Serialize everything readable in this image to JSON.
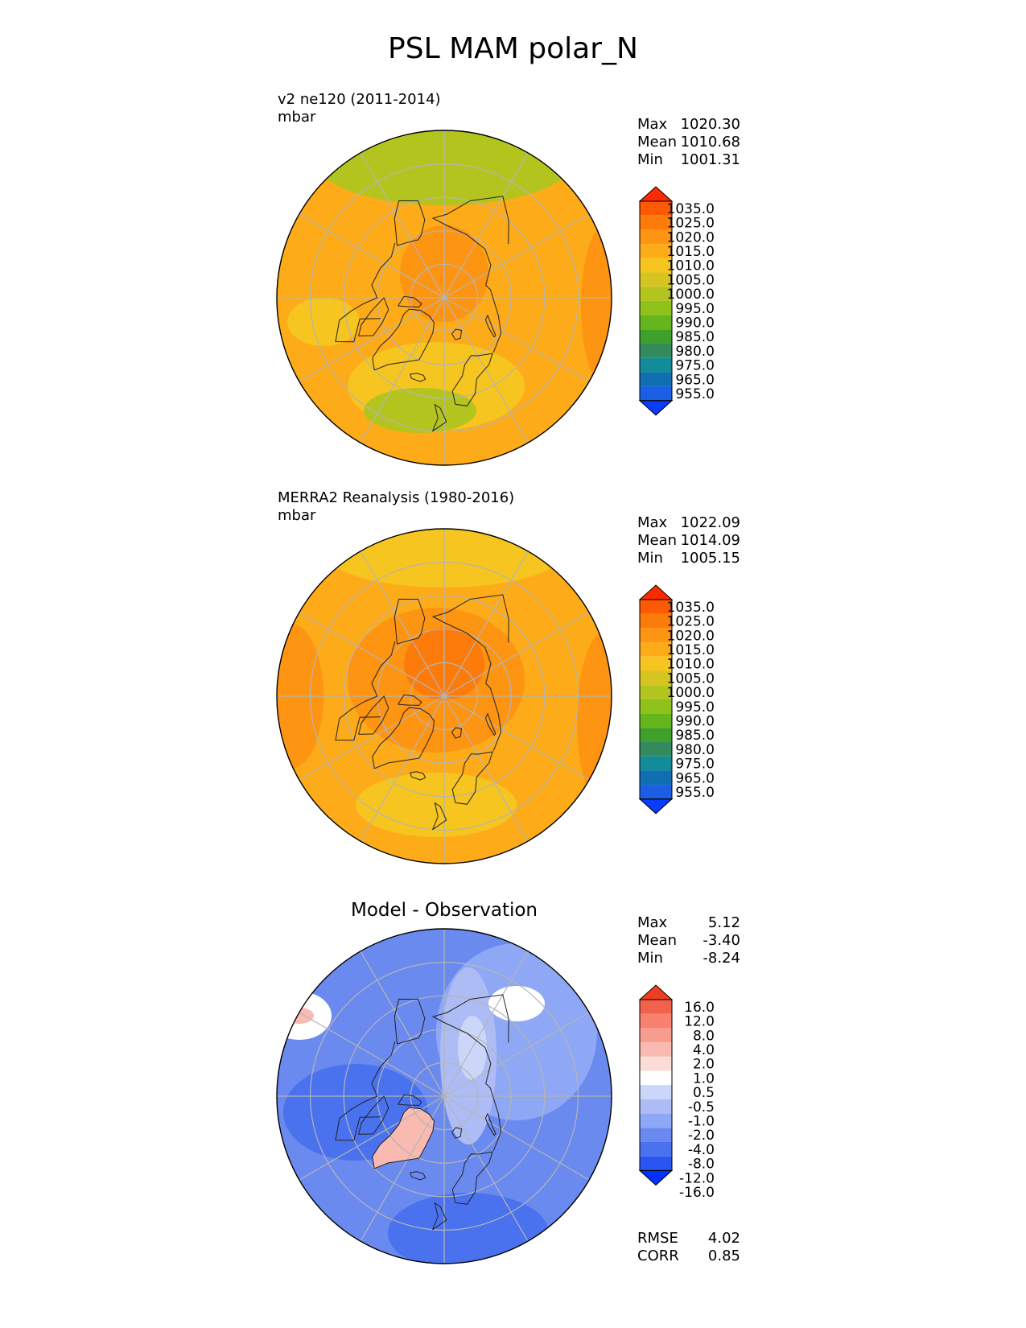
{
  "title": "PSL MAM polar_N",
  "colors": {
    "abs_levels": [
      "#0a3cff",
      "#1a5ee6",
      "#0f6fb0",
      "#138c99",
      "#338a5c",
      "#3fa02c",
      "#64b61c",
      "#8ec21a",
      "#b4c41f",
      "#d6c520",
      "#f6c51f",
      "#fdab19",
      "#fd9412",
      "#fd7b0a",
      "#fc5a05",
      "#fc2a00"
    ],
    "diff_levels": [
      "#0030ff",
      "#2a55f2",
      "#4a72ee",
      "#6a8af0",
      "#8ea8f5",
      "#aebcf6",
      "#ccd6f8",
      "#ffffff",
      "#fbdcd8",
      "#f9bab2",
      "#f89c90",
      "#f7806f",
      "#f2614c",
      "#ee3e1f"
    ],
    "coastline": "#222222",
    "grid": "#b5b5b5"
  },
  "panels": [
    {
      "label_line1": "v2 ne120 (2011-2014)",
      "label_line2": "mbar",
      "panel_title": "",
      "stats": [
        {
          "k": "Max",
          "v": "1020.30"
        },
        {
          "k": "Mean",
          "v": "1010.68"
        },
        {
          "k": "Min",
          "v": "1001.31"
        }
      ],
      "colorbar_ticks": [
        "1035.0",
        "1025.0",
        "1020.0",
        "1015.0",
        "1010.0",
        "1005.0",
        "1000.0",
        "995.0",
        "990.0",
        "985.0",
        "980.0",
        "975.0",
        "965.0",
        "955.0"
      ],
      "map_type": "model"
    },
    {
      "label_line1": "MERRA2 Reanalysis (1980-2016)",
      "label_line2": "mbar",
      "panel_title": "",
      "stats": [
        {
          "k": "Max",
          "v": "1022.09"
        },
        {
          "k": "Mean",
          "v": "1014.09"
        },
        {
          "k": "Min",
          "v": "1005.15"
        }
      ],
      "colorbar_ticks": [
        "1035.0",
        "1025.0",
        "1020.0",
        "1015.0",
        "1010.0",
        "1005.0",
        "1000.0",
        "995.0",
        "990.0",
        "985.0",
        "980.0",
        "975.0",
        "965.0",
        "955.0"
      ],
      "map_type": "obs"
    },
    {
      "label_line1": "",
      "label_line2": "",
      "panel_title": "Model - Observation",
      "stats": [
        {
          "k": "Max",
          "v": "5.12"
        },
        {
          "k": "Mean",
          "v": "-3.40"
        },
        {
          "k": "Min",
          "v": "-8.24"
        }
      ],
      "colorbar_ticks": [
        "16.0",
        "12.0",
        "8.0",
        "4.0",
        "2.0",
        "1.0",
        "0.5",
        "-0.5",
        "-1.0",
        "-2.0",
        "-4.0",
        "-8.0",
        "-12.0",
        "-16.0"
      ],
      "map_type": "diff",
      "extra_stats": [
        {
          "k": "RMSE",
          "v": "4.02"
        },
        {
          "k": "CORR",
          "v": "0.85"
        }
      ]
    }
  ],
  "chart_data": [
    {
      "type": "heatmap",
      "title": "v2 ne120 (2011-2014)",
      "units": "mbar",
      "projection": "north polar stereographic",
      "levels": [
        955,
        965,
        975,
        980,
        985,
        990,
        995,
        1000,
        1005,
        1010,
        1015,
        1020,
        1025,
        1035
      ],
      "max": 1020.3,
      "mean": 1010.68,
      "min": 1001.31
    },
    {
      "type": "heatmap",
      "title": "MERRA2 Reanalysis (1980-2016)",
      "units": "mbar",
      "projection": "north polar stereographic",
      "levels": [
        955,
        965,
        975,
        980,
        985,
        990,
        995,
        1000,
        1005,
        1010,
        1015,
        1020,
        1025,
        1035
      ],
      "max": 1022.09,
      "mean": 1014.09,
      "min": 1005.15
    },
    {
      "type": "heatmap",
      "title": "Model - Observation",
      "projection": "north polar stereographic",
      "levels": [
        -16,
        -12,
        -8,
        -4,
        -2,
        -1,
        -0.5,
        0.5,
        1,
        2,
        4,
        8,
        12,
        16
      ],
      "max": 5.12,
      "mean": -3.4,
      "min": -8.24,
      "rmse": 4.02,
      "corr": 0.85
    }
  ]
}
